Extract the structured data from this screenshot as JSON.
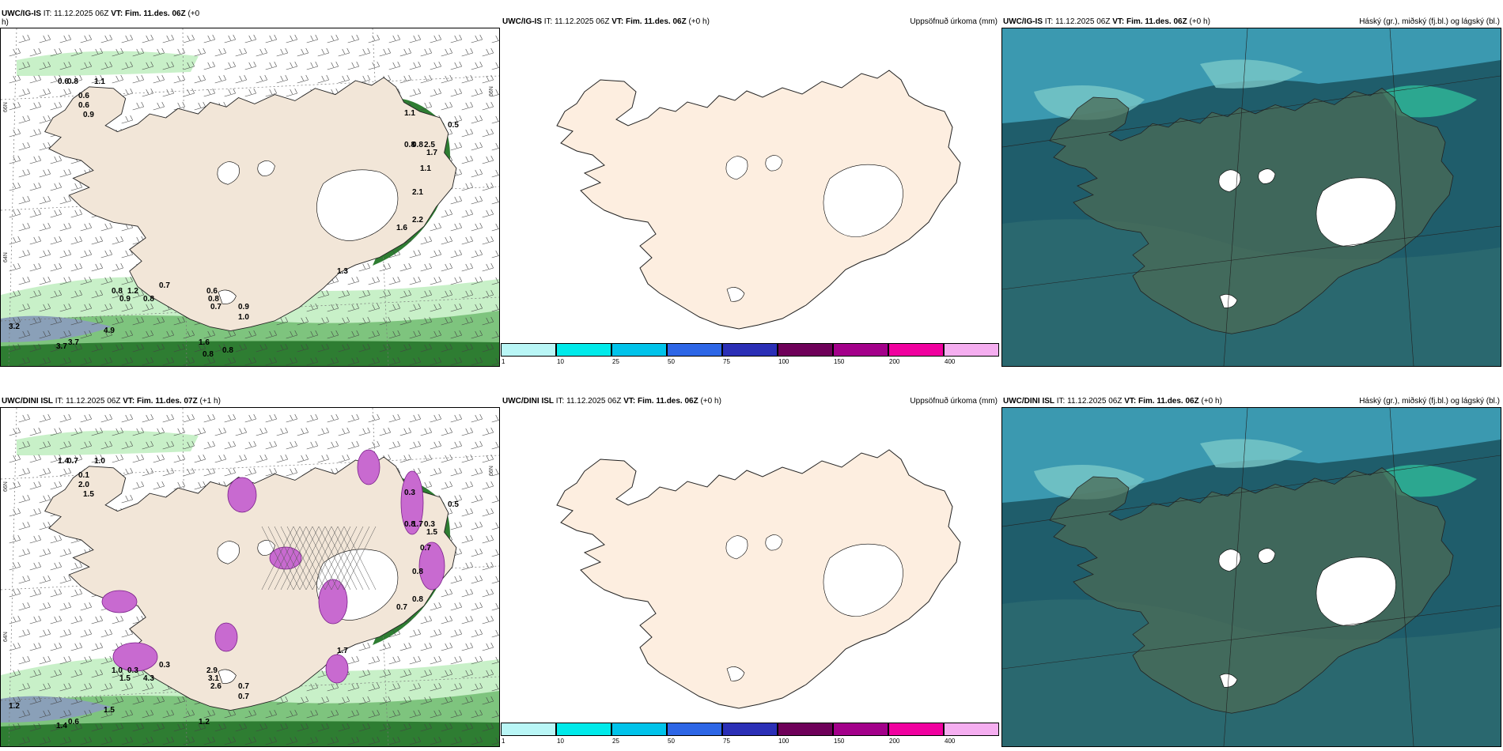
{
  "panels": {
    "top_left": {
      "model": "UWC/IG-IS",
      "it_label": "IT:",
      "it_value": "11.12.2025 06Z",
      "vt_label": "VT:",
      "vt_value": "Fim. 11.des. 06Z",
      "lead": "(+0",
      "wrap": "h)"
    },
    "top_mid": {
      "model": "UWC/IG-IS",
      "it_label": "IT:",
      "it_value": "11.12.2025 06Z",
      "vt_label": "VT:",
      "vt_value": "Fim. 11.des. 06Z",
      "lead": "(+0 h)",
      "product": "Uppsöfnuð úrkoma (mm)"
    },
    "top_right": {
      "model": "UWC/IG-IS",
      "it_label": "IT:",
      "it_value": "11.12.2025 06Z",
      "vt_label": "VT:",
      "vt_value": "Fim. 11.des. 06Z",
      "lead": "(+0 h)",
      "product": "Háský (gr.), miðský (fj.bl.) og lágský (bl.)"
    },
    "bottom_left": {
      "model": "UWC/DINI ISL",
      "it_label": "IT:",
      "it_value": "11.12.2025 06Z",
      "vt_label": "VT:",
      "vt_value": "Fim. 11.des. 07Z",
      "lead": "(+1 h)"
    },
    "bottom_mid": {
      "model": "UWC/DINI ISL",
      "it_label": "IT:",
      "it_value": "11.12.2025 06Z",
      "vt_label": "VT:",
      "vt_value": "Fim. 11.des. 06Z",
      "lead": "(+0 h)",
      "product": "Uppsöfnuð úrkoma (mm)"
    },
    "bottom_right": {
      "model": "UWC/DINI ISL",
      "it_label": "IT:",
      "it_value": "11.12.2025 06Z",
      "vt_label": "VT:",
      "vt_value": "Fim. 11.des. 06Z",
      "lead": "(+0 h)",
      "product": "Háský (gr.), miðský (fj.bl.) og lágský (bl.)"
    }
  },
  "colorbar": {
    "ticks": [
      "1",
      "10",
      "25",
      "50",
      "75",
      "100",
      "150",
      "200",
      "400"
    ],
    "colors": [
      "#b9f6f6",
      "#00eaea",
      "#00c3ea",
      "#2d66e6",
      "#2b2fb6",
      "#6e0059",
      "#a3008a",
      "#f0009f",
      "#f5aef0"
    ]
  },
  "lat_labels": {
    "n66": "66N",
    "n64": "64N",
    "w20": "20W",
    "w10": "10W"
  },
  "top_left_values": [
    {
      "t": "0.6"
    },
    {
      "t": "0.8"
    },
    {
      "t": "1.1"
    },
    {
      "t": "0.6"
    },
    {
      "t": "0.6"
    },
    {
      "t": "0.9"
    },
    {
      "t": "1.1"
    },
    {
      "t": "0.5"
    },
    {
      "t": "0.8"
    },
    {
      "t": "2.5"
    },
    {
      "t": "1.7"
    },
    {
      "t": "0.8"
    },
    {
      "t": "1.1"
    },
    {
      "t": "2.1"
    },
    {
      "t": "2.2"
    },
    {
      "t": "1.6"
    },
    {
      "t": "1.3"
    },
    {
      "t": "0.8"
    },
    {
      "t": "1.2"
    },
    {
      "t": "0.9"
    },
    {
      "t": "0.8"
    },
    {
      "t": "0.7"
    },
    {
      "t": "0.6"
    },
    {
      "t": "0.8"
    },
    {
      "t": "0.7"
    },
    {
      "t": "0.9"
    },
    {
      "t": "1.0"
    },
    {
      "t": "3.2"
    },
    {
      "t": "4.9"
    },
    {
      "t": "3.7"
    },
    {
      "t": "3.7"
    },
    {
      "t": "1.6"
    },
    {
      "t": "0.8"
    },
    {
      "t": "0.8"
    }
  ],
  "bottom_left_values": [
    {
      "t": "1.4"
    },
    {
      "t": "0.7"
    },
    {
      "t": "1.0"
    },
    {
      "t": "0.1"
    },
    {
      "t": "2.0"
    },
    {
      "t": "1.5"
    },
    {
      "t": "0.3"
    },
    {
      "t": "0.5"
    },
    {
      "t": "1.7"
    },
    {
      "t": "0.3"
    },
    {
      "t": "1.5"
    },
    {
      "t": "0.8"
    },
    {
      "t": "0.7"
    },
    {
      "t": "0.8"
    },
    {
      "t": "0.8"
    },
    {
      "t": "0.7"
    },
    {
      "t": "1.7"
    },
    {
      "t": "1.0"
    },
    {
      "t": "0.3"
    },
    {
      "t": "1.5"
    },
    {
      "t": "4.3"
    },
    {
      "t": "0.3"
    },
    {
      "t": "2.9"
    },
    {
      "t": "3.1"
    },
    {
      "t": "2.6"
    },
    {
      "t": "0.7"
    },
    {
      "t": "0.7"
    },
    {
      "t": "1.2"
    },
    {
      "t": "1.5"
    },
    {
      "t": "1.4"
    },
    {
      "t": "0.6"
    },
    {
      "t": "1.2"
    }
  ]
}
